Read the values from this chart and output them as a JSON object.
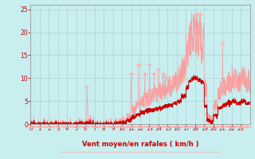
{
  "bg_color": "#c8eef0",
  "grid_color": "#b0d8d8",
  "line_color_avg": "#cc0000",
  "line_color_gust": "#ff9999",
  "marker_color": "#ffaaaa",
  "xlabel": "Vent moyen/en rafales ( km/h )",
  "xlabel_color": "#cc0000",
  "ylabel_color": "#cc0000",
  "tick_color": "#cc0000",
  "ylim": [
    0,
    26
  ],
  "yticks": [
    0,
    5,
    10,
    15,
    20,
    25
  ],
  "xticks": [
    0,
    1,
    2,
    3,
    4,
    5,
    6,
    7,
    8,
    9,
    10,
    11,
    12,
    13,
    14,
    15,
    16,
    17,
    18,
    19,
    20,
    21,
    22,
    23
  ],
  "figsize": [
    3.2,
    2.0
  ],
  "dpi": 100
}
